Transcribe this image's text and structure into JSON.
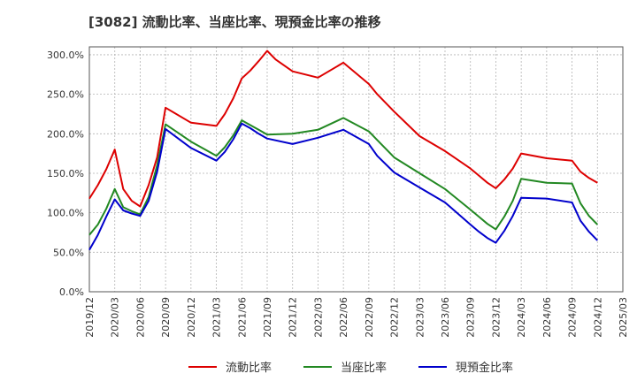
{
  "chart_data": {
    "type": "line",
    "title": "[3082]  流動比率、当座比率、現預金比率の推移",
    "xlabel": "",
    "ylabel": "",
    "ylim": [
      0,
      310
    ],
    "y_ticks": [
      "0.0%",
      "50.0%",
      "100.0%",
      "150.0%",
      "200.0%",
      "250.0%",
      "300.0%"
    ],
    "y_tick_values": [
      0,
      50,
      100,
      150,
      200,
      250,
      300
    ],
    "x_tick_labels": [
      "2019/12",
      "2020/03",
      "2020/06",
      "2020/09",
      "2020/12",
      "2021/03",
      "2021/06",
      "2021/09",
      "2021/12",
      "2022/03",
      "2022/06",
      "2022/09",
      "2022/12",
      "2023/03",
      "2023/06",
      "2023/09",
      "2023/12",
      "2024/03",
      "2024/06",
      "2024/09",
      "2024/12",
      "2025/03"
    ],
    "x_tick_index": [
      0,
      3,
      6,
      9,
      12,
      15,
      18,
      21,
      24,
      27,
      30,
      33,
      36,
      39,
      42,
      45,
      48,
      51,
      54,
      57,
      60,
      63
    ],
    "x_range": [
      0,
      63
    ],
    "legend_position": "bottom",
    "grid": true,
    "series": [
      {
        "name": "流動比率",
        "color": "#dd0000",
        "x": [
          0,
          1,
          2,
          3,
          4,
          5,
          6,
          7,
          8,
          9,
          12,
          15,
          16,
          17,
          18,
          19,
          20,
          21,
          22,
          24,
          27,
          30,
          33,
          34,
          36,
          39,
          42,
          45,
          46,
          47,
          48,
          49,
          50,
          51,
          54,
          57,
          58,
          59,
          60
        ],
        "values": [
          118,
          135,
          155,
          180,
          130,
          115,
          108,
          135,
          170,
          233,
          214,
          210,
          225,
          245,
          270,
          280,
          292,
          305,
          294,
          279,
          271,
          290,
          263,
          250,
          228,
          197,
          178,
          156,
          147,
          138,
          131,
          142,
          156,
          175,
          169,
          166,
          152,
          144,
          138
        ]
      },
      {
        "name": "当座比率",
        "color": "#228822",
        "x": [
          0,
          1,
          2,
          3,
          4,
          5,
          6,
          7,
          8,
          9,
          12,
          15,
          16,
          17,
          18,
          19,
          20,
          21,
          24,
          27,
          30,
          33,
          34,
          36,
          39,
          42,
          45,
          46,
          47,
          48,
          49,
          50,
          51,
          54,
          57,
          58,
          59,
          60
        ],
        "values": [
          72,
          85,
          105,
          130,
          107,
          102,
          98,
          120,
          160,
          212,
          190,
          172,
          183,
          198,
          217,
          211,
          205,
          199,
          200,
          205,
          220,
          203,
          192,
          170,
          150,
          130,
          104,
          95,
          86,
          79,
          95,
          115,
          143,
          138,
          137,
          112,
          96,
          85
        ]
      },
      {
        "name": "現預金比率",
        "color": "#0000cc",
        "x": [
          0,
          1,
          2,
          3,
          4,
          5,
          6,
          7,
          8,
          9,
          12,
          15,
          16,
          17,
          18,
          19,
          20,
          21,
          24,
          27,
          30,
          33,
          34,
          36,
          39,
          42,
          45,
          46,
          47,
          48,
          49,
          50,
          51,
          54,
          57,
          58,
          59,
          60
        ],
        "values": [
          53,
          72,
          95,
          117,
          103,
          99,
          96,
          115,
          152,
          206,
          182,
          166,
          177,
          193,
          213,
          207,
          200,
          194,
          187,
          195,
          205,
          187,
          172,
          151,
          132,
          113,
          85,
          76,
          68,
          62,
          77,
          96,
          119,
          118,
          113,
          90,
          76,
          65
        ]
      }
    ]
  }
}
